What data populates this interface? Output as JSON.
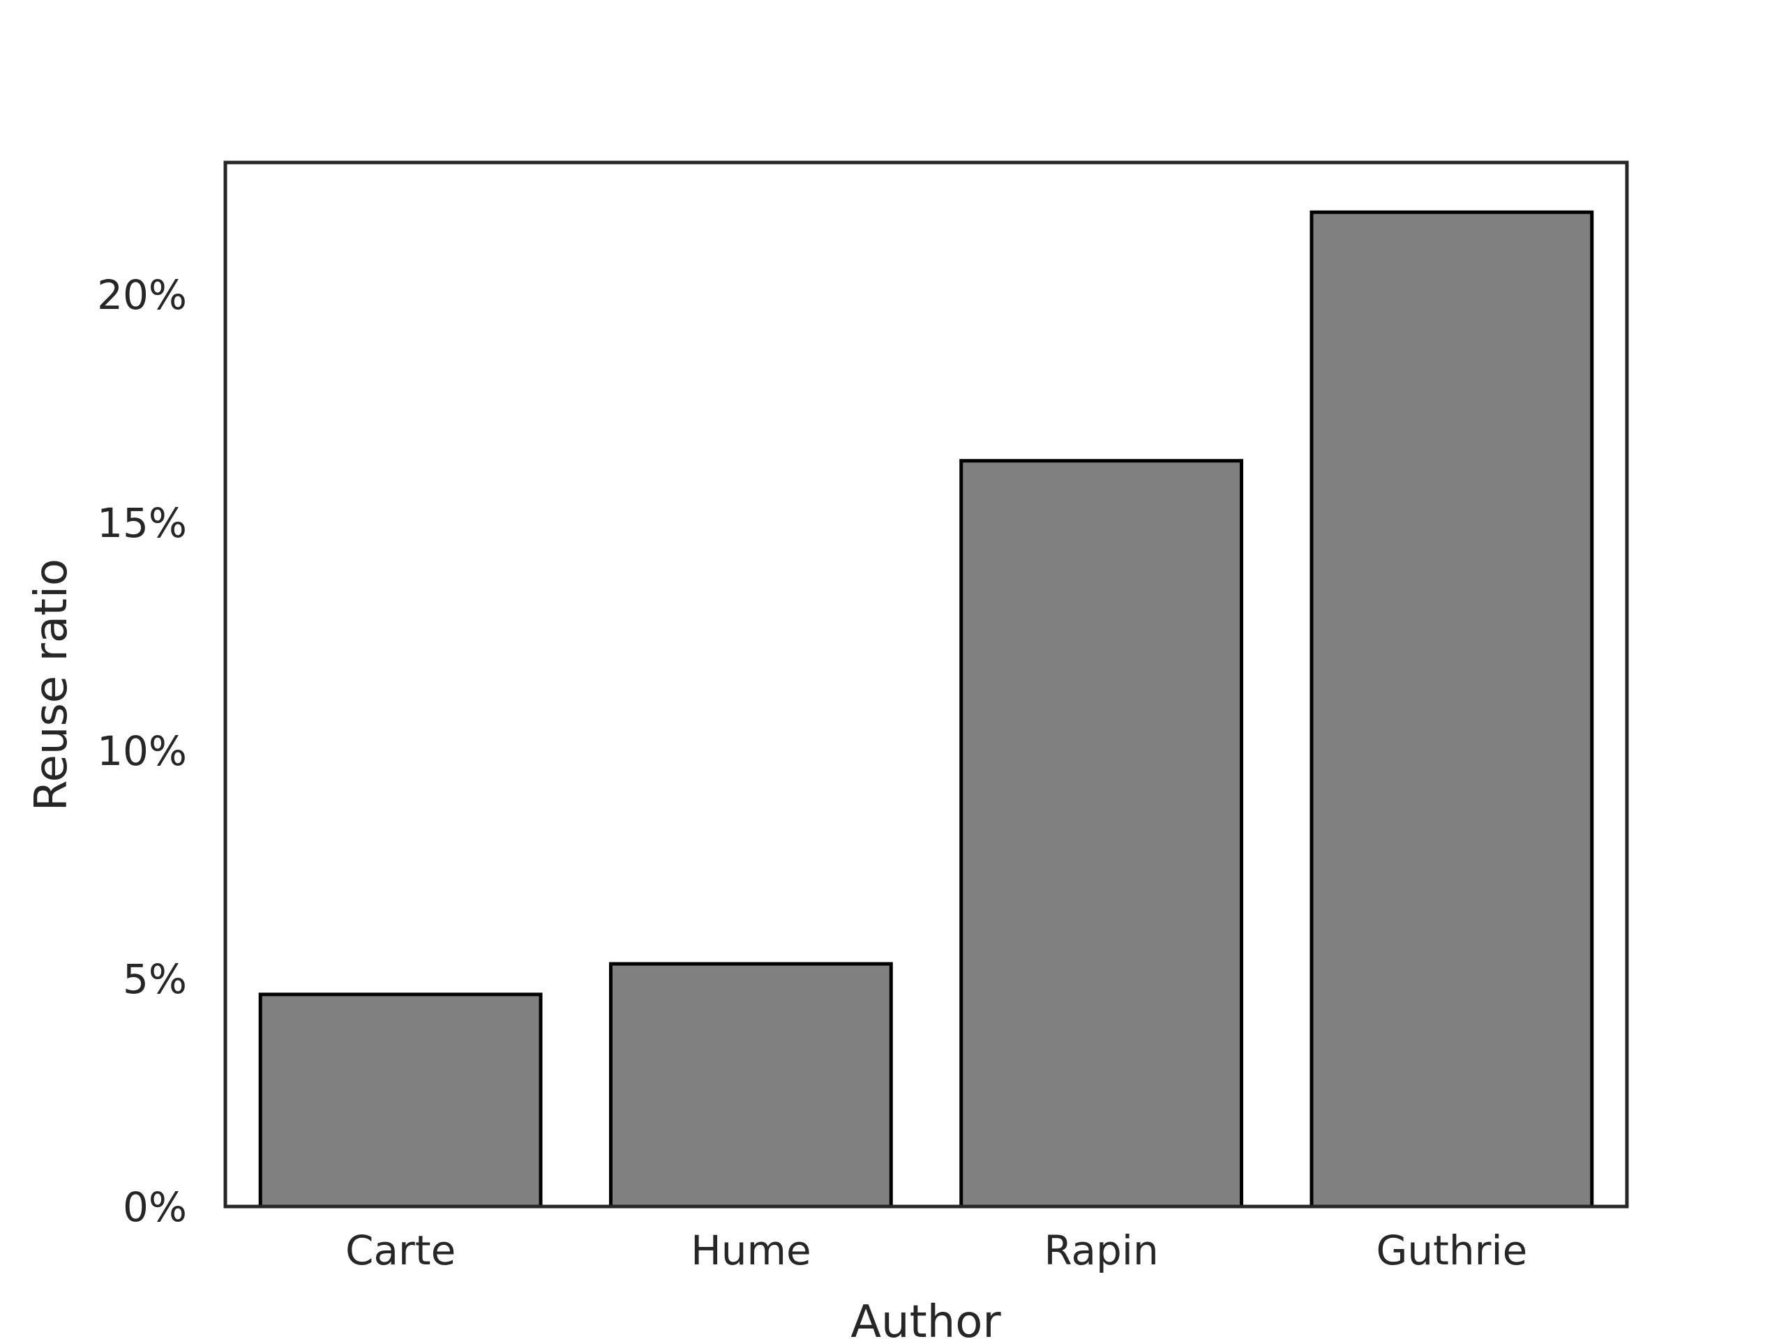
{
  "chart_data": {
    "type": "bar",
    "title": "",
    "xlabel": "Author",
    "ylabel": "Reuse ratio",
    "categories": [
      "Carte",
      "Hume",
      "Rapin",
      "Guthrie"
    ],
    "values": [
      0.0465,
      0.0532,
      0.1635,
      0.218
    ],
    "ylim": [
      0,
      0.2289
    ],
    "yticks": [
      0,
      0.05,
      0.1,
      0.15,
      0.2
    ],
    "ytick_labels": [
      "0%",
      "5%",
      "10%",
      "15%",
      "20%"
    ],
    "bar_color": "#808080",
    "bar_edge_color": "#000000",
    "axis_color": "#262626",
    "grid": false,
    "legend": "none"
  }
}
